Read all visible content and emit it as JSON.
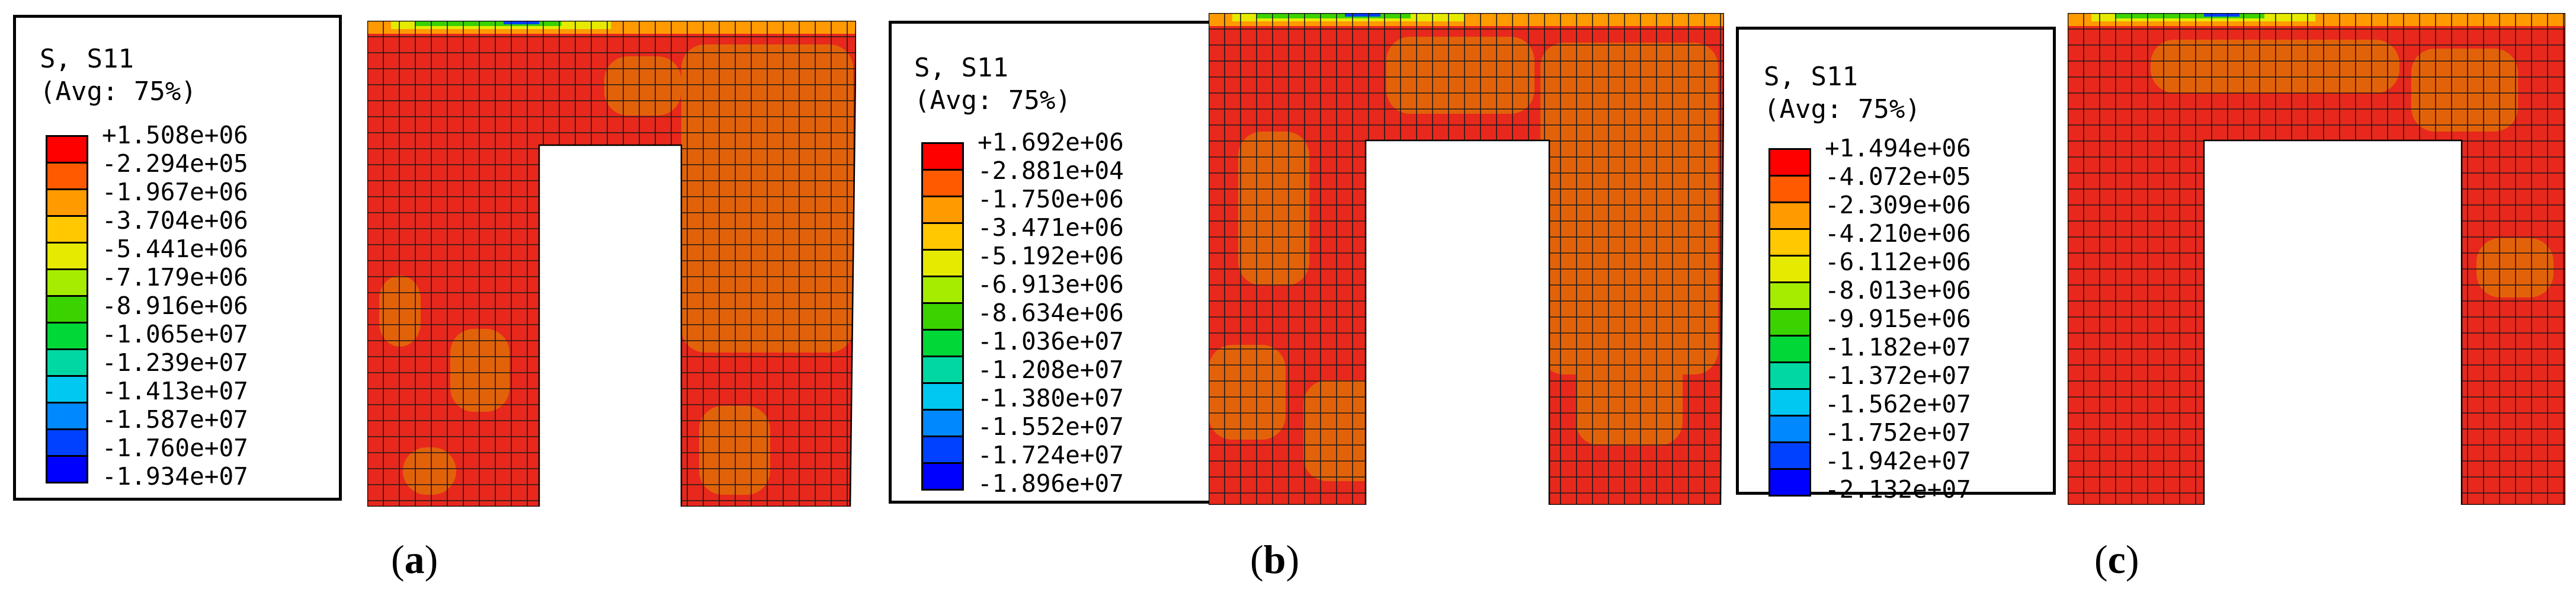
{
  "panels": [
    {
      "id": "a",
      "caption_open": "(",
      "caption_letter": "a",
      "caption_close": ")",
      "legend_title": "S, S11",
      "legend_avg": "(Avg: 75%)",
      "values": [
        "+1.508e+06",
        "-2.294e+05",
        "-1.967e+06",
        "-3.704e+06",
        "-5.441e+06",
        "-7.179e+06",
        "-8.916e+06",
        "-1.065e+07",
        "-1.239e+07",
        "-1.413e+07",
        "-1.587e+07",
        "-1.760e+07",
        "-1.934e+07"
      ]
    },
    {
      "id": "b",
      "caption_open": "(",
      "caption_letter": "b",
      "caption_close": ")",
      "legend_title": "S, S11",
      "legend_avg": "(Avg: 75%)",
      "values": [
        "+1.692e+06",
        "-2.881e+04",
        "-1.750e+06",
        "-3.471e+06",
        "-5.192e+06",
        "-6.913e+06",
        "-8.634e+06",
        "-1.036e+07",
        "-1.208e+07",
        "-1.380e+07",
        "-1.552e+07",
        "-1.724e+07",
        "-1.896e+07"
      ]
    },
    {
      "id": "c",
      "caption_open": "(",
      "caption_letter": "c",
      "caption_close": ")",
      "legend_title": "S, S11",
      "legend_avg": "(Avg: 75%)",
      "values": [
        "+1.494e+06",
        "-4.072e+05",
        "-2.309e+06",
        "-4.210e+06",
        "-6.112e+06",
        "-8.013e+06",
        "-9.915e+06",
        "-1.182e+07",
        "-1.372e+07",
        "-1.562e+07",
        "-1.752e+07",
        "-1.942e+07",
        "-2.132e+07"
      ]
    }
  ],
  "colors": {
    "scale": [
      "#ff0000",
      "#ff5a00",
      "#ff9a00",
      "#ffc800",
      "#e6ea00",
      "#a6ec00",
      "#3ad300",
      "#00d838",
      "#00d8a4",
      "#00c8f0",
      "#0088ff",
      "#0040ff",
      "#0000ff"
    ],
    "fe_red": "#e8281c",
    "fe_orange": "#e2620a",
    "mesh_line": "#1a1a1a"
  }
}
